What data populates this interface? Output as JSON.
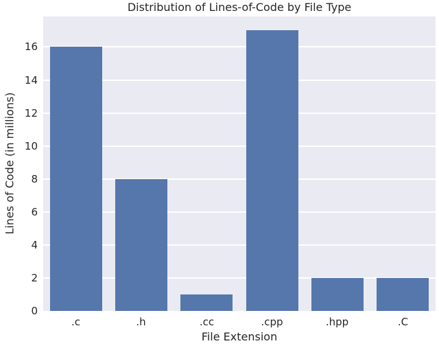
{
  "chart_data": {
    "type": "bar",
    "title": "Distribution of Lines-of-Code by File Type",
    "xlabel": "File Extension",
    "ylabel": "Lines of Code (in millions)",
    "categories": [
      ".c",
      ".h",
      ".cc",
      ".cpp",
      ".hpp",
      ".C"
    ],
    "values": [
      16,
      8,
      1,
      17,
      2,
      2
    ],
    "yticks": [
      0,
      2,
      4,
      6,
      8,
      10,
      12,
      14,
      16
    ],
    "ylim": [
      0,
      17.85
    ],
    "legend": null,
    "grid": "horizontal",
    "colors": {
      "bar": "#5577ab",
      "plot_background": "#eaeaf2",
      "gridline": "#ffffff",
      "text": "#262626",
      "figure_background": "#ffffff"
    }
  }
}
